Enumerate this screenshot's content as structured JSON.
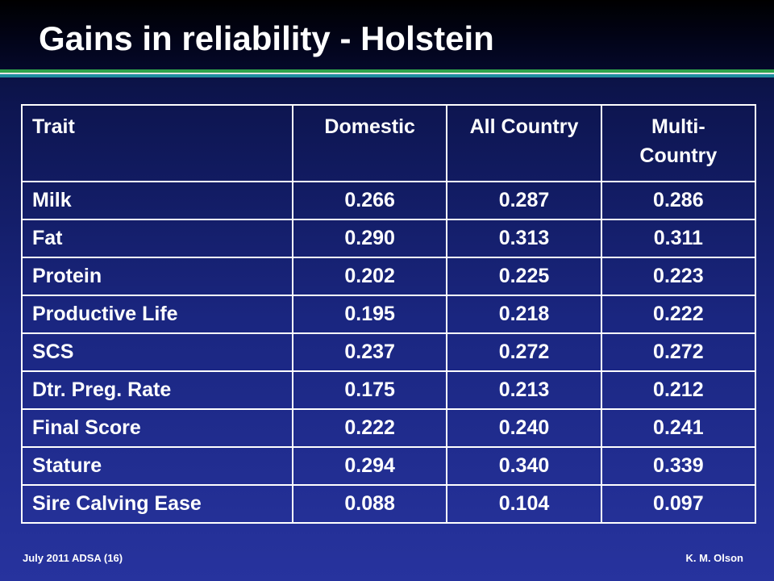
{
  "slide": {
    "title": "Gains in reliability - Holstein"
  },
  "table": {
    "headers": [
      "Trait",
      "Domestic",
      "All Country",
      "Multi- Country"
    ],
    "rows": [
      [
        "Milk",
        "0.266",
        "0.287",
        "0.286"
      ],
      [
        "Fat",
        "0.290",
        "0.313",
        "0.311"
      ],
      [
        "Protein",
        "0.202",
        "0.225",
        "0.223"
      ],
      [
        "Productive Life",
        "0.195",
        "0.218",
        "0.222"
      ],
      [
        "SCS",
        "0.237",
        "0.272",
        "0.272"
      ],
      [
        "Dtr. Preg. Rate",
        "0.175",
        "0.213",
        "0.212"
      ],
      [
        "Final Score",
        "0.222",
        "0.240",
        "0.241"
      ],
      [
        "Stature",
        "0.294",
        "0.340",
        "0.339"
      ],
      [
        "Sire Calving Ease",
        "0.088",
        "0.104",
        "0.097"
      ]
    ]
  },
  "footer": {
    "left": "July 2011 ADSA (16)",
    "right": "K. M. Olson"
  },
  "colors": {
    "background_top": "#060b28",
    "background_bottom": "#27339e",
    "rule_green": "#2fa44a",
    "rule_teal": "#1f8fa0",
    "text": "#ffffff"
  }
}
